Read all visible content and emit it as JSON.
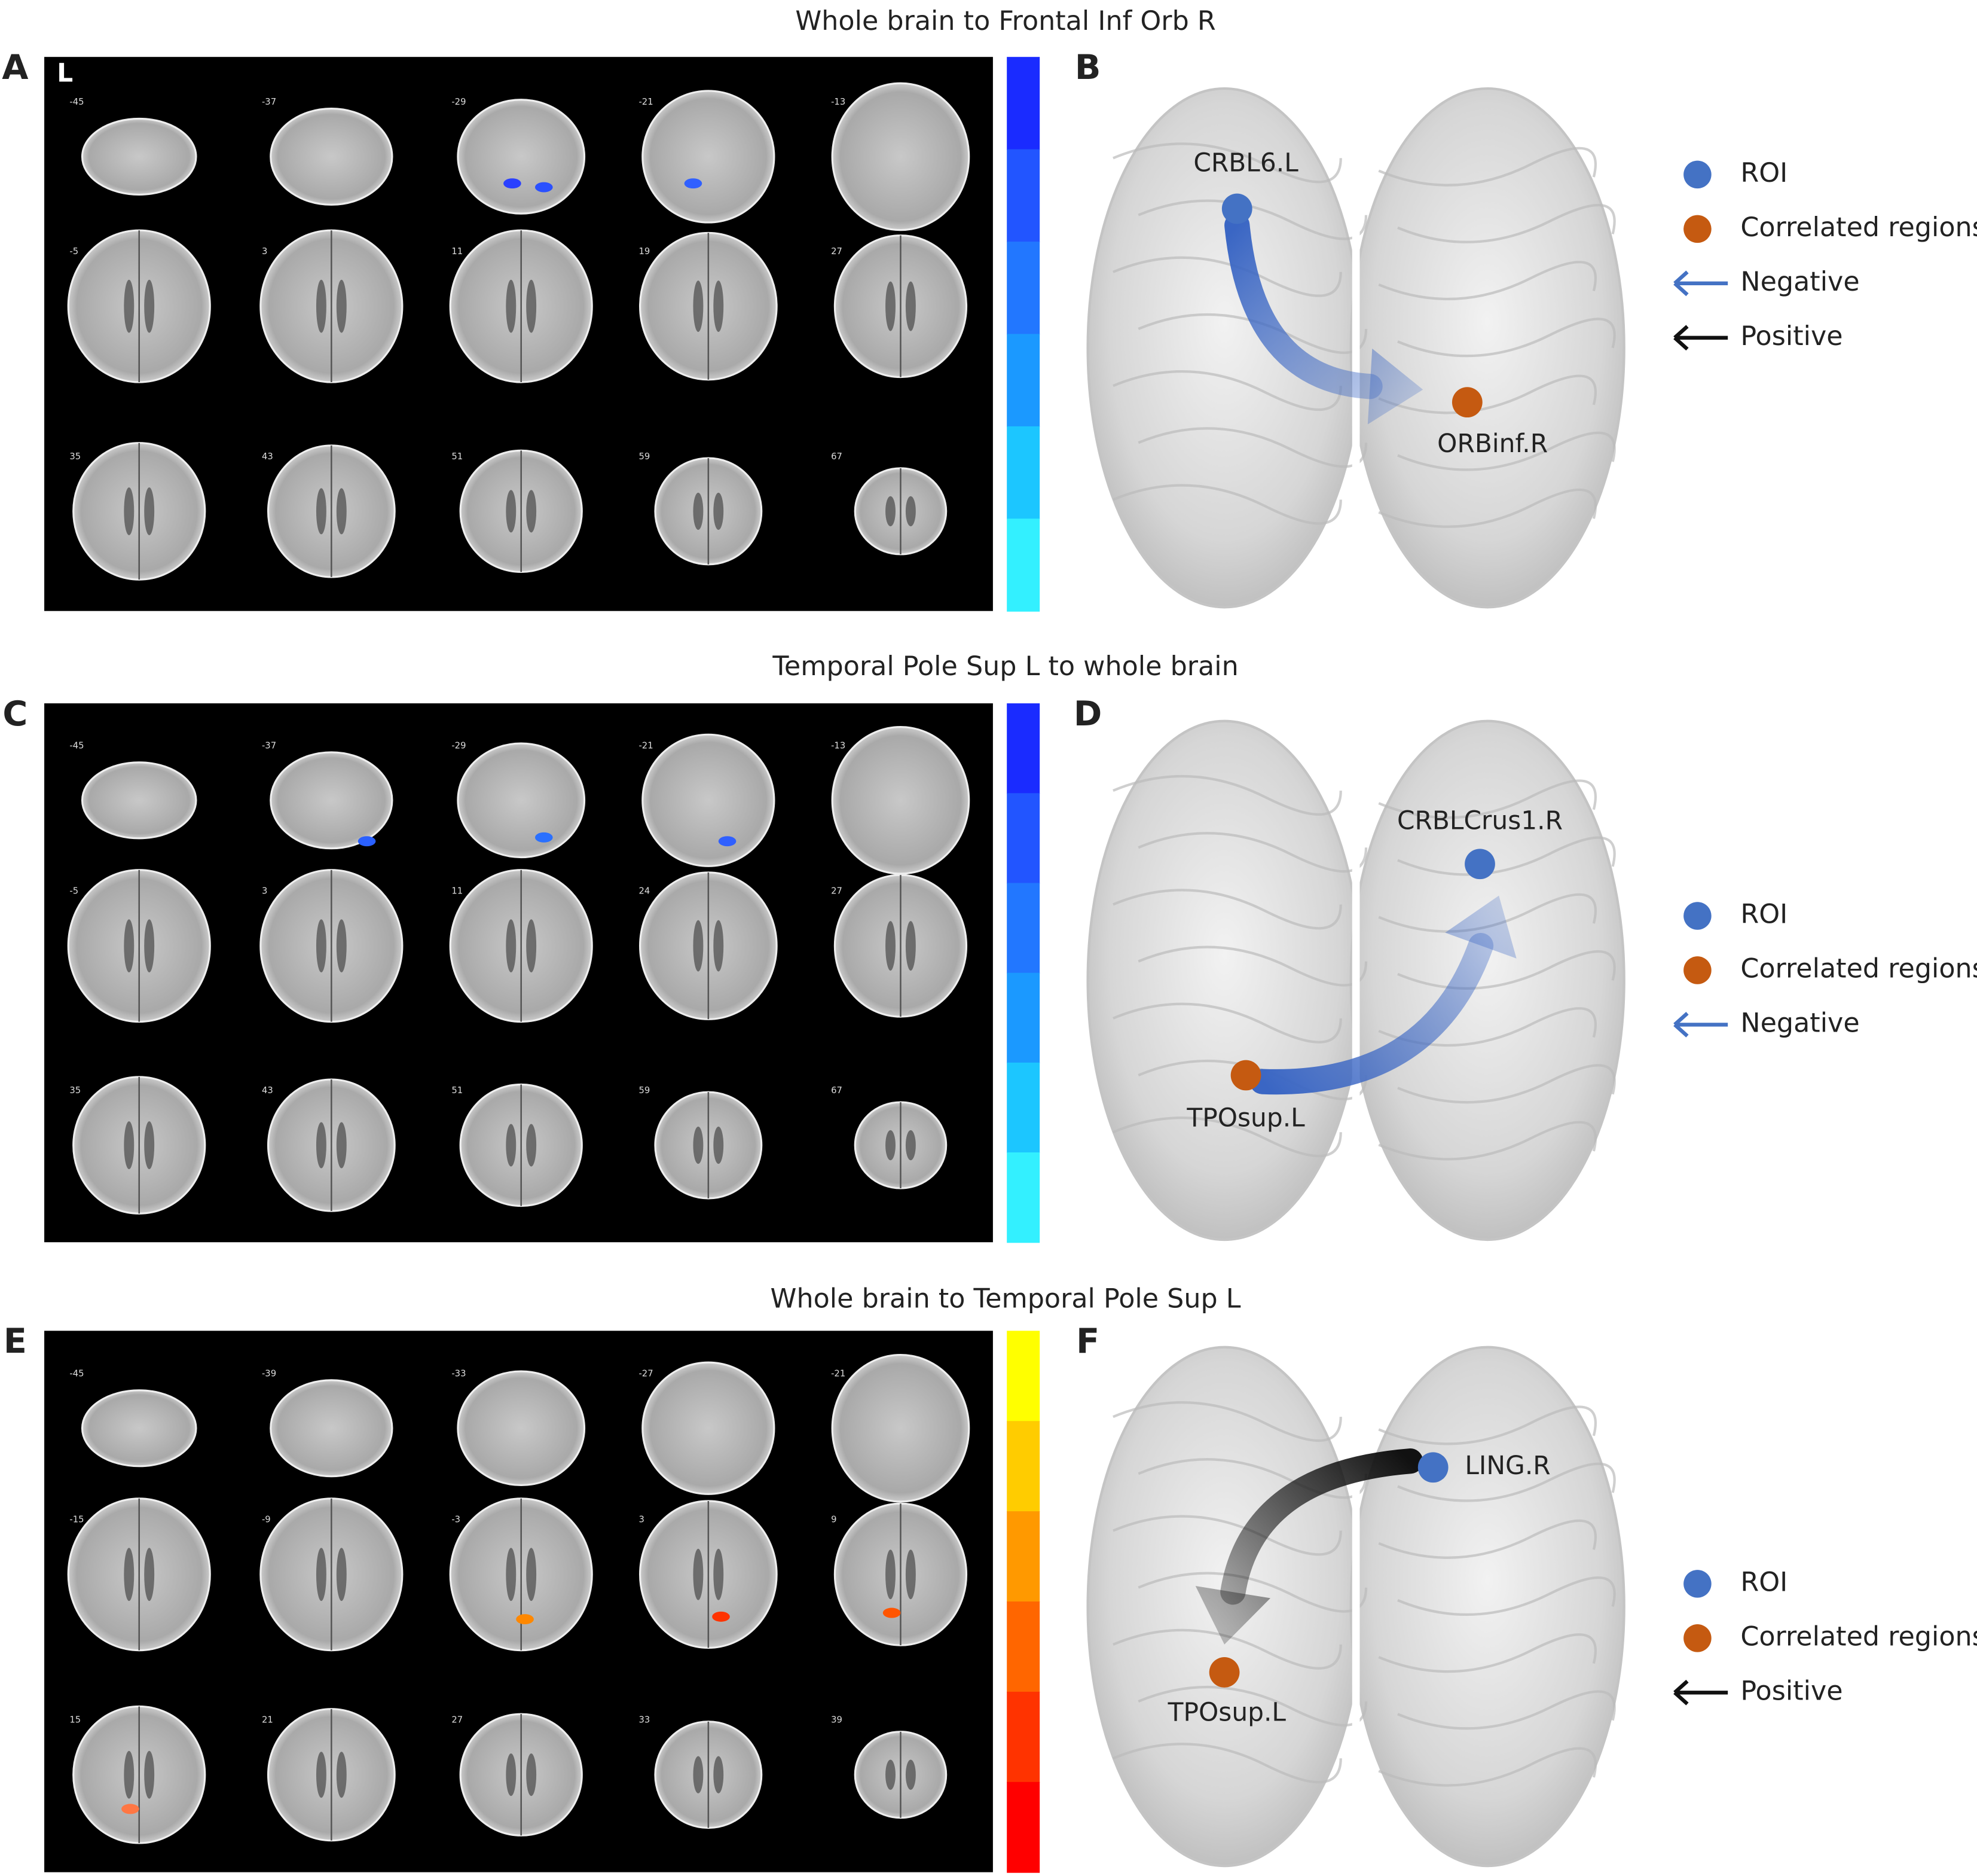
{
  "figure": {
    "rows": [
      {
        "title": "Whole brain to Frontal Inf Orb R",
        "map_panel": {
          "letter": "A",
          "orientation": "L",
          "slices": [
            "-45",
            "-37",
            "-29",
            "-21",
            "-13",
            "-5",
            "3",
            "11",
            "19",
            "27",
            "35",
            "43",
            "51",
            "59",
            "67"
          ],
          "colorbar": [
            "#1a2bff",
            "#2255ff",
            "#2277ff",
            "#1b99ff",
            "#1cc6ff",
            "#33f0ff"
          ]
        },
        "network_panel": {
          "letter": "B",
          "roi": "CRBL6.L",
          "correlated": "ORBinf.R",
          "arrow_color": "#3a66c4",
          "legend_nodes": [
            {
              "label": "ROI",
              "color": "#4472c4"
            },
            {
              "label": "Correlated regions",
              "color": "#c55a11"
            }
          ],
          "legend_arrows": [
            {
              "label": "Negative",
              "color": "#4472c4"
            },
            {
              "label": "Positive",
              "color": "#111111"
            }
          ]
        }
      },
      {
        "title": "Temporal Pole Sup L to whole brain",
        "map_panel": {
          "letter": "C",
          "slices": [
            "-45",
            "-37",
            "-29",
            "-21",
            "-13",
            "-5",
            "3",
            "11",
            "24",
            "27",
            "35",
            "43",
            "51",
            "59",
            "67"
          ],
          "colorbar": [
            "#1a2bff",
            "#2255ff",
            "#2277ff",
            "#1b99ff",
            "#1cc6ff",
            "#33f0ff"
          ]
        },
        "network_panel": {
          "letter": "D",
          "roi": "CRBLCrus1.R",
          "correlated": "TPOsup.L",
          "arrow_color": "#3a66c4",
          "legend_nodes": [
            {
              "label": "ROI",
              "color": "#4472c4"
            },
            {
              "label": "Correlated regions",
              "color": "#c55a11"
            }
          ],
          "legend_arrows": [
            {
              "label": "Negative",
              "color": "#4472c4"
            }
          ]
        }
      },
      {
        "title": "Whole brain to Temporal Pole Sup L",
        "map_panel": {
          "letter": "E",
          "slices": [
            "-45",
            "-39",
            "-33",
            "-27",
            "-21",
            "-15",
            "-9",
            "-3",
            "3",
            "9",
            "15",
            "21",
            "27",
            "33",
            "39"
          ],
          "colorbar": [
            "#ffff00",
            "#ffcc00",
            "#ff9900",
            "#ff6600",
            "#ff3300",
            "#ff0000"
          ]
        },
        "network_panel": {
          "letter": "F",
          "roi": "LING.R",
          "correlated": "TPOsup.L",
          "arrow_color": "#111111",
          "legend_nodes": [
            {
              "label": "ROI",
              "color": "#4472c4"
            },
            {
              "label": "Correlated regions",
              "color": "#c55a11"
            }
          ],
          "legend_arrows": [
            {
              "label": "Positive",
              "color": "#111111"
            }
          ]
        }
      }
    ]
  }
}
